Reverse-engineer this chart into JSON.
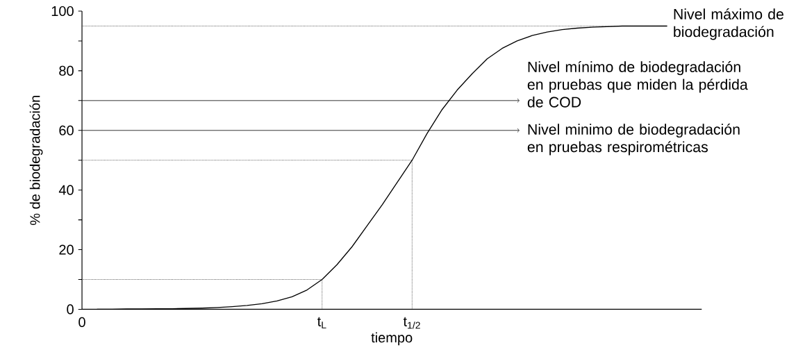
{
  "chart_data": {
    "type": "line",
    "xlabel": "tiempo",
    "ylabel": "% de biodegradación",
    "categories": [
      "0",
      null,
      null,
      null,
      null,
      null,
      null,
      null,
      null,
      null,
      null,
      null,
      null,
      null,
      null,
      null,
      "t$_{L}$",
      null,
      null,
      null,
      null,
      null,
      "t$_{1/2}$",
      null,
      null,
      null,
      null,
      null,
      null,
      null,
      null,
      null,
      null,
      null,
      null,
      null,
      null,
      null,
      null,
      null
    ],
    "ylim": [
      0,
      100
    ],
    "yticks": [
      0,
      {
        "value": 10,
        "label": null
      },
      20,
      {
        "value": 30,
        "label": null
      },
      40,
      {
        "value": 50,
        "label": null
      },
      60,
      {
        "value": 70,
        "label": null
      },
      80,
      {
        "value": 90,
        "label": null
      },
      100
    ],
    "marker": "none",
    "series": [
      {
        "color": "#000000",
        "values": [
          null,
          0,
          0,
          0.1,
          0.1,
          0.2,
          0.2,
          0.3,
          0.4,
          0.6,
          0.9,
          1.3,
          1.9,
          2.8,
          4.2,
          6.5,
          10,
          15,
          21,
          28,
          35,
          42.5,
          50,
          59,
          67,
          73.5,
          79,
          84,
          87.5,
          90,
          91.8,
          93,
          93.8,
          94.3,
          94.6,
          94.8,
          95,
          95,
          95,
          95
        ]
      }
    ],
    "ref_lines": [
      {
        "axis": "y",
        "value": 95,
        "label": "Nivel máximo de biodegradación",
        "line_style": "dotted"
      },
      {
        "axis": "y",
        "value": 70,
        "label": "Nivel mínimo de biodegradación en pruebas que miden la pérdida de COD",
        "line_style": "solid"
      },
      {
        "axis": "y",
        "value": 60,
        "label": "Nivel minimo de biodegradación en pruebas respirométricas",
        "line_style": "solid"
      },
      {
        "axis": "y",
        "value": 50,
        "line_style": "dotted"
      },
      {
        "axis": "y",
        "value": 10,
        "line_style": "dotted"
      },
      {
        "axis": "x",
        "value": "t$_{L}$",
        "line_style": "dotted"
      },
      {
        "axis": "x",
        "value": "t$_{1/2}$",
        "line_style": "dotted"
      }
    ]
  }
}
